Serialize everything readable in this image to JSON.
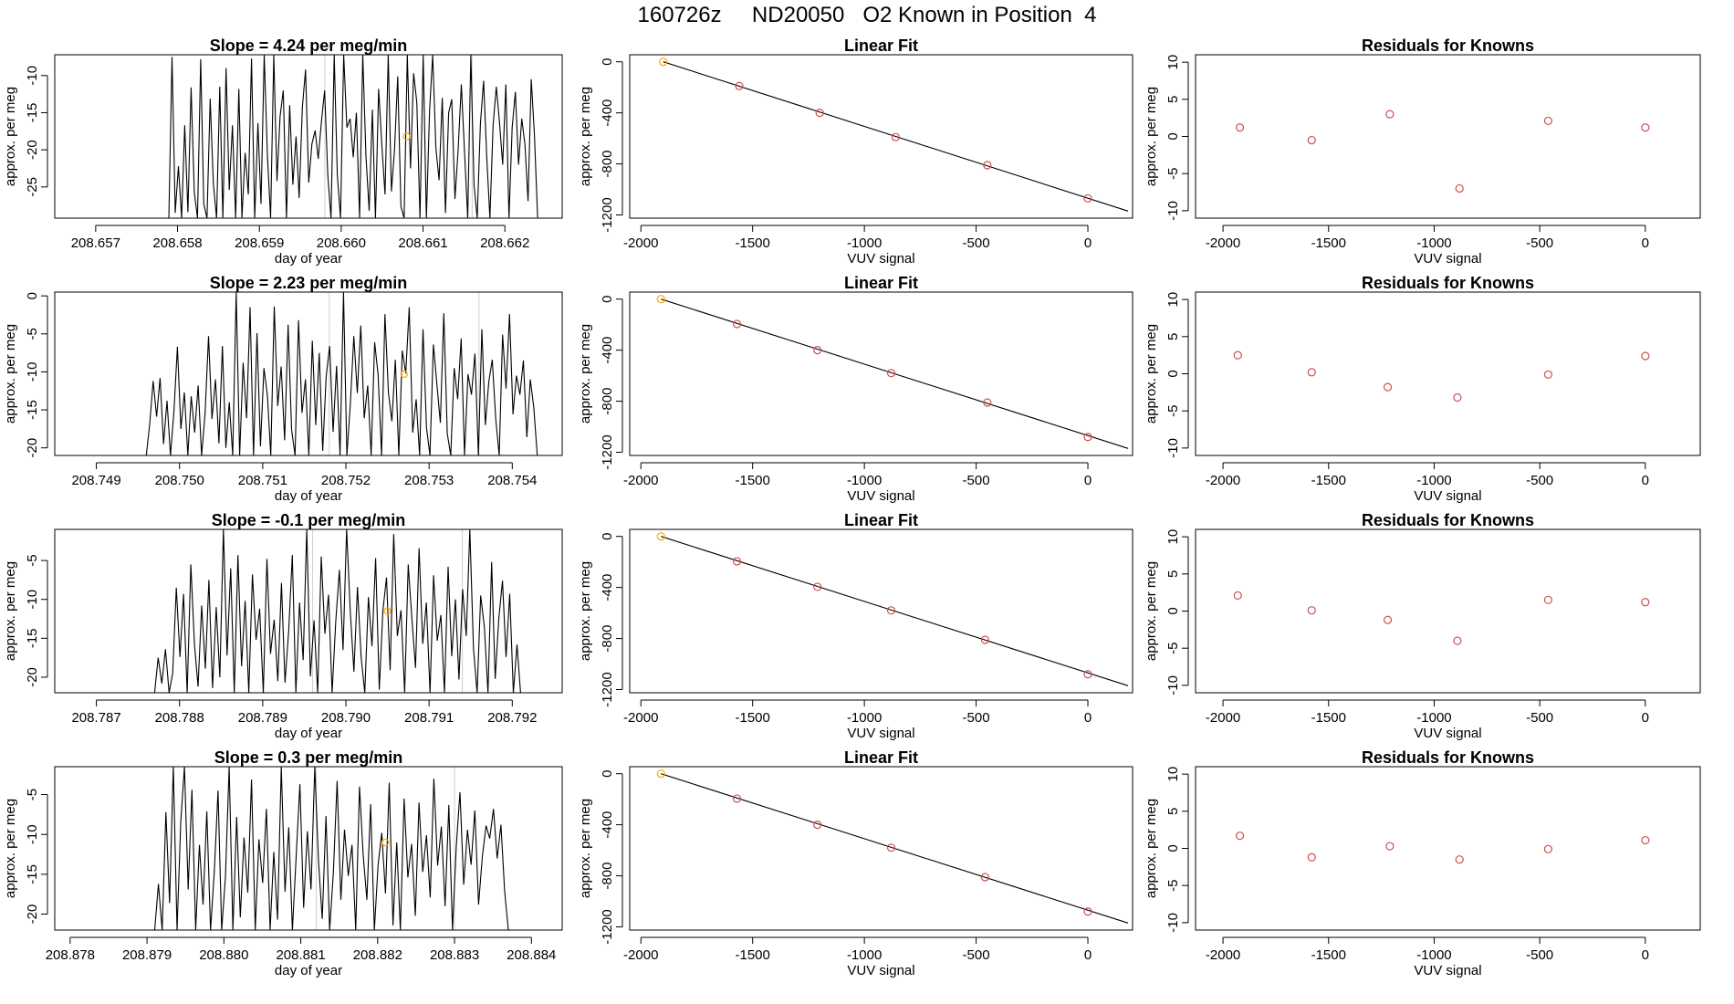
{
  "page_title": "160726z     ND20050   O2 Known in Position  4",
  "colors": {
    "trace": "#000000",
    "fit_line": "#000000",
    "point": "#cd4f4f",
    "marker": "#ffa500",
    "vline": "#cfcfcf",
    "frame": "#000000"
  },
  "chart_data": [
    {
      "type": "line",
      "row": 1,
      "title": "Slope =  4.24  per meg/min",
      "xlabel": "day of year",
      "ylabel": "approx. per meg",
      "xlim": [
        208.6565,
        208.6627
      ],
      "ylim": [
        -29.2,
        -7.2
      ],
      "xticks": [
        208.657,
        208.658,
        208.659,
        208.66,
        208.661,
        208.662
      ],
      "xtick_labels": [
        "208.657",
        "208.658",
        "208.659",
        "208.660",
        "208.661",
        "208.662"
      ],
      "yticks": [
        -25,
        -20,
        -15,
        -10
      ],
      "ytick_labels": [
        "-25",
        "-20",
        "-15",
        "-10"
      ],
      "vlines": [
        208.6598,
        208.6616
      ],
      "marker": {
        "x": 208.6608,
        "y": -18.2
      },
      "trace_range": [
        208.6577,
        208.6624
      ],
      "trace": [
        -29.2,
        -29.2,
        -29.2,
        -29.2,
        -29.2,
        -29.2,
        -7.5,
        -28.5,
        -22.2,
        -29.2,
        -16.7,
        -28.4,
        -11.6,
        -25.7,
        -29.2,
        -7.8,
        -27.3,
        -29.2,
        -13.1,
        -24.6,
        -29.2,
        -11.5,
        -29.2,
        -9.0,
        -25.4,
        -16.7,
        -29.2,
        -11.8,
        -29.2,
        -20.4,
        -26.0,
        -7.7,
        -29.2,
        -16.4,
        -27.3,
        -7.2,
        -20.7,
        -29.2,
        -7.2,
        -24.2,
        -15.5,
        -12.0,
        -29.2,
        -14.0,
        -24.7,
        -18.2,
        -26.5,
        -14.3,
        -9.2,
        -24.4,
        -19.2,
        -17.4,
        -21.2,
        -16.2,
        -12.0,
        -23.5,
        -29.2,
        -7.2,
        -23.4,
        -29.2,
        -7.2,
        -17.0,
        -15.8,
        -21.0,
        -15.0,
        -29.2,
        -7.2,
        -20.9,
        -28.2,
        -14.6,
        -29.2,
        -11.8,
        -19.4,
        -26.0,
        -7.2,
        -25.6,
        -20.0,
        -10.1,
        -27.6,
        -29.2,
        -7.2,
        -22.5,
        -9.7,
        -13.6,
        -29.2,
        -7.2,
        -29.2,
        -14.8,
        -7.2,
        -19.7,
        -24.1,
        -13.0,
        -28.5,
        -15.0,
        -13.2,
        -26.6,
        -20.0,
        -11.2,
        -20.3,
        -29.2,
        -7.2,
        -24.7,
        -29.2,
        -16.5,
        -10.7,
        -21.1,
        -29.2,
        -16.7,
        -11.5,
        -16.3,
        -22.0,
        -11.2,
        -29.2,
        -17.0,
        -12.2,
        -22.0,
        -15.8,
        -19.3,
        -26.9,
        -10.5,
        -18.0,
        -29.2
      ]
    },
    {
      "type": "scatter",
      "row": 1,
      "title": "Linear Fit",
      "xlabel": "VUV signal",
      "ylabel": "approx. per meg",
      "xlim": [
        -2050,
        200
      ],
      "ylim": [
        -1225,
        55
      ],
      "xticks": [
        -2000,
        -1500,
        -1000,
        -500,
        0
      ],
      "xtick_labels": [
        "-2000",
        "-1500",
        "-1000",
        "-500",
        "0"
      ],
      "yticks": [
        -1200,
        -800,
        -400,
        0
      ],
      "ytick_labels": [
        "-1200",
        "-800",
        "-400",
        "0"
      ],
      "points": [
        [
          -1900,
          0
        ],
        [
          -1560,
          -190
        ],
        [
          -1200,
          -400
        ],
        [
          -860,
          -590
        ],
        [
          -450,
          -810
        ],
        [
          0,
          -1070
        ]
      ],
      "highlight_index": 0,
      "fit": [
        [
          -1900,
          0
        ],
        [
          180,
          -1170
        ]
      ]
    },
    {
      "type": "scatter",
      "row": 1,
      "title": "Residuals for Knowns",
      "xlabel": "VUV signal",
      "ylabel": "approx. per meg",
      "xlim": [
        -2130,
        260
      ],
      "ylim": [
        -11,
        11
      ],
      "xticks": [
        -2000,
        -1500,
        -1000,
        -500,
        0
      ],
      "xtick_labels": [
        "-2000",
        "-1500",
        "-1000",
        "-500",
        "0"
      ],
      "yticks": [
        -10,
        -5,
        0,
        5,
        10
      ],
      "ytick_labels": [
        "-10",
        "-5",
        "0",
        "5",
        "10"
      ],
      "points": [
        [
          -1920,
          1.2
        ],
        [
          -1580,
          -0.5
        ],
        [
          -1210,
          3.0
        ],
        [
          -880,
          -7.0
        ],
        [
          -460,
          2.1
        ],
        [
          0,
          1.2
        ]
      ]
    },
    {
      "type": "line",
      "row": 2,
      "title": "Slope =  2.23  per meg/min",
      "xlabel": "day of year",
      "ylabel": "approx. per meg",
      "xlim": [
        208.7485,
        208.7546
      ],
      "ylim": [
        -21,
        0.5
      ],
      "xticks": [
        208.749,
        208.75,
        208.751,
        208.752,
        208.753,
        208.754
      ],
      "xtick_labels": [
        "208.749",
        "208.750",
        "208.751",
        "208.752",
        "208.753",
        "208.754"
      ],
      "yticks": [
        -20,
        -15,
        -10,
        -5,
        0
      ],
      "ytick_labels": [
        "-20",
        "-15",
        "-10",
        "-5",
        "0"
      ],
      "vlines": [
        208.7518,
        208.7536
      ],
      "marker": {
        "x": 208.7527,
        "y": -10.3
      },
      "trace_range": [
        208.7496,
        208.7543
      ],
      "trace": [
        -21.0,
        -16.8,
        -11.2,
        -15.9,
        -10.8,
        -19.5,
        -13.8,
        -21.0,
        -15.2,
        -6.7,
        -17.5,
        -12.7,
        -21.0,
        -13.2,
        -18.0,
        -11.8,
        -21.0,
        -15.5,
        -5.3,
        -16.2,
        -11.0,
        -19.4,
        -6.6,
        -20.0,
        -14.0,
        -21.0,
        0.5,
        -21.0,
        -8.8,
        -16.1,
        -1.5,
        -21.0,
        -4.9,
        -19.8,
        -9.5,
        -13.1,
        -21.0,
        -1.4,
        -14.5,
        -9.3,
        -19.0,
        -3.8,
        -17.6,
        -21.0,
        -3.2,
        -15.4,
        -11.0,
        -21.0,
        -5.9,
        -17.0,
        -7.5,
        -20.4,
        -10.6,
        -6.6,
        -17.9,
        -9.2,
        -21.0,
        0.5,
        -21.0,
        -14.2,
        -5.3,
        -12.8,
        -3.9,
        -16.1,
        -11.8,
        -21.0,
        -6.1,
        -10.4,
        -21.0,
        -2.4,
        -12.7,
        -16.5,
        -8.4,
        -21.0,
        -7.2,
        -10.2,
        -1.5,
        -18.0,
        -13.6,
        -21.0,
        -4.4,
        -17.3,
        -21.0,
        -6.4,
        -11.6,
        -16.7,
        -2.3,
        -18.1,
        -21.0,
        -9.5,
        -13.6,
        -5.6,
        -21.0,
        -10.3,
        -13.0,
        -7.6,
        -21.0,
        -4.4,
        -17.0,
        -11.3,
        -8.4,
        -16.2,
        -21.0,
        -5.1,
        -12.2,
        -2.4,
        -15.6,
        -10.5,
        -13.0,
        -8.5,
        -18.6,
        -11.0,
        -14.7,
        -21.0
      ]
    },
    {
      "type": "scatter",
      "row": 2,
      "title": "Linear Fit",
      "xlabel": "VUV signal",
      "ylabel": "approx. per meg",
      "xlim": [
        -2050,
        200
      ],
      "ylim": [
        -1225,
        55
      ],
      "xticks": [
        -2000,
        -1500,
        -1000,
        -500,
        0
      ],
      "xtick_labels": [
        "-2000",
        "-1500",
        "-1000",
        "-500",
        "0"
      ],
      "yticks": [
        -1200,
        -800,
        -400,
        0
      ],
      "ytick_labels": [
        "-1200",
        "-800",
        "-400",
        "0"
      ],
      "points": [
        [
          -1910,
          0
        ],
        [
          -1570,
          -195
        ],
        [
          -1210,
          -400
        ],
        [
          -880,
          -580
        ],
        [
          -450,
          -810
        ],
        [
          0,
          -1080
        ]
      ],
      "highlight_index": 0,
      "fit": [
        [
          -1910,
          0
        ],
        [
          180,
          -1170
        ]
      ]
    },
    {
      "type": "scatter",
      "row": 2,
      "title": "Residuals for Knowns",
      "xlabel": "VUV signal",
      "ylabel": "approx. per meg",
      "xlim": [
        -2130,
        260
      ],
      "ylim": [
        -11,
        11
      ],
      "xticks": [
        -2000,
        -1500,
        -1000,
        -500,
        0
      ],
      "xtick_labels": [
        "-2000",
        "-1500",
        "-1000",
        "-500",
        "0"
      ],
      "yticks": [
        -10,
        -5,
        0,
        5,
        10
      ],
      "ytick_labels": [
        "-10",
        "-5",
        "0",
        "5",
        "10"
      ],
      "points": [
        [
          -1930,
          2.5
        ],
        [
          -1580,
          0.2
        ],
        [
          -1220,
          -1.8
        ],
        [
          -890,
          -3.2
        ],
        [
          -460,
          -0.1
        ],
        [
          0,
          2.4
        ]
      ]
    },
    {
      "type": "line",
      "row": 3,
      "title": "Slope =  -0.1  per meg/min",
      "xlabel": "day of year",
      "ylabel": "approx. per meg",
      "xlim": [
        208.7865,
        208.7926
      ],
      "ylim": [
        -22,
        -1
      ],
      "xticks": [
        208.787,
        208.788,
        208.789,
        208.79,
        208.791,
        208.792
      ],
      "xtick_labels": [
        "208.787",
        "208.788",
        "208.789",
        "208.790",
        "208.791",
        "208.792"
      ],
      "yticks": [
        -20,
        -15,
        -10,
        -5
      ],
      "ytick_labels": [
        "-20",
        "-15",
        "-10",
        "-5"
      ],
      "vlines": [
        208.7896,
        208.7914
      ],
      "marker": {
        "x": 208.7905,
        "y": -11.5
      },
      "trace_range": [
        208.7877,
        208.7921
      ],
      "trace": [
        -22.0,
        -17.5,
        -20.8,
        -16.4,
        -22.0,
        -19.5,
        -8.5,
        -17.4,
        -9.3,
        -22.0,
        -5.5,
        -15.8,
        -21.2,
        -10.8,
        -18.9,
        -7.5,
        -21.4,
        -11.0,
        -20.0,
        -1.0,
        -17.2,
        -6.0,
        -22.0,
        -4.3,
        -18.6,
        -10.2,
        -22.0,
        -6.8,
        -15.2,
        -11.2,
        -22.0,
        -4.8,
        -17.0,
        -12.6,
        -20.5,
        -7.9,
        -20.7,
        -14.1,
        -4.3,
        -22.0,
        -10.4,
        -17.8,
        -1.0,
        -19.9,
        -12.7,
        -22.0,
        -4.5,
        -14.4,
        -9.4,
        -22.0,
        -12.8,
        -6.2,
        -16.5,
        -1.0,
        -11.5,
        -19.3,
        -8.4,
        -17.4,
        -22.0,
        -9.7,
        -16.0,
        -4.7,
        -21.6,
        -11.5,
        -7.2,
        -19.1,
        -1.6,
        -14.7,
        -11.4,
        -22.0,
        -5.5,
        -12.5,
        -18.8,
        -3.4,
        -15.7,
        -10.4,
        -22.0,
        -6.9,
        -15.3,
        -12.0,
        -22.0,
        -5.8,
        -17.3,
        -10.0,
        -20.3,
        -8.7,
        -14.7,
        -1.0,
        -16.3,
        -22.0,
        -9.5,
        -13.5,
        -22.0,
        -5.2,
        -20.2,
        -12.4,
        -7.6,
        -17.4,
        -9.3,
        -22.0,
        -15.8,
        -22.0
      ]
    },
    {
      "type": "scatter",
      "row": 3,
      "title": "Linear Fit",
      "xlabel": "VUV signal",
      "ylabel": "approx. per meg",
      "xlim": [
        -2050,
        200
      ],
      "ylim": [
        -1225,
        55
      ],
      "xticks": [
        -2000,
        -1500,
        -1000,
        -500,
        0
      ],
      "xtick_labels": [
        "-2000",
        "-1500",
        "-1000",
        "-500",
        "0"
      ],
      "yticks": [
        -1200,
        -800,
        -400,
        0
      ],
      "ytick_labels": [
        "-1200",
        "-800",
        "-400",
        "0"
      ],
      "points": [
        [
          -1910,
          0
        ],
        [
          -1570,
          -195
        ],
        [
          -1210,
          -395
        ],
        [
          -880,
          -580
        ],
        [
          -460,
          -810
        ],
        [
          0,
          -1080
        ]
      ],
      "highlight_index": 0,
      "fit": [
        [
          -1910,
          0
        ],
        [
          180,
          -1170
        ]
      ]
    },
    {
      "type": "scatter",
      "row": 3,
      "title": "Residuals for Knowns",
      "xlabel": "VUV signal",
      "ylabel": "approx. per meg",
      "xlim": [
        -2130,
        260
      ],
      "ylim": [
        -11,
        11
      ],
      "xticks": [
        -2000,
        -1500,
        -1000,
        -500,
        0
      ],
      "xtick_labels": [
        "-2000",
        "-1500",
        "-1000",
        "-500",
        "0"
      ],
      "yticks": [
        -10,
        -5,
        0,
        5,
        10
      ],
      "ytick_labels": [
        "-10",
        "-5",
        "0",
        "5",
        "10"
      ],
      "points": [
        [
          -1930,
          2.1
        ],
        [
          -1580,
          0.1
        ],
        [
          -1220,
          -1.2
        ],
        [
          -890,
          -4.0
        ],
        [
          -460,
          1.5
        ],
        [
          0,
          1.2
        ]
      ]
    },
    {
      "type": "line",
      "row": 4,
      "title": "Slope =  0.3  per meg/min",
      "xlabel": "day of year",
      "ylabel": "approx. per meg",
      "xlim": [
        208.8778,
        208.8844
      ],
      "ylim": [
        -22,
        -1.5
      ],
      "xticks": [
        208.878,
        208.879,
        208.88,
        208.881,
        208.882,
        208.883,
        208.884
      ],
      "xtick_labels": [
        "208.878",
        "208.879",
        "208.880",
        "208.881",
        "208.882",
        "208.883",
        "208.884"
      ],
      "yticks": [
        -20,
        -15,
        -10,
        -5
      ],
      "ytick_labels": [
        "-20",
        "-15",
        "-10",
        "-5"
      ],
      "vlines": [
        208.8812,
        208.883
      ],
      "marker": {
        "x": 208.8821,
        "y": -11.0
      },
      "trace_range": [
        208.8791,
        208.8837
      ],
      "trace": [
        -22.0,
        -16.2,
        -22.0,
        -7.2,
        -18.6,
        -1.5,
        -22.0,
        -8.3,
        -1.5,
        -16.9,
        -4.4,
        -22.0,
        -11.3,
        -18.8,
        -7.1,
        -22.0,
        -14.7,
        -4.5,
        -22.0,
        -15.4,
        -1.5,
        -22.0,
        -7.8,
        -20.4,
        -10.4,
        -17.3,
        -3.1,
        -22.0,
        -10.6,
        -16.1,
        -6.8,
        -22.0,
        -12.2,
        -20.7,
        -1.5,
        -17.2,
        -9.1,
        -22.0,
        -12.8,
        -3.7,
        -19.2,
        -9.6,
        -16.9,
        -1.5,
        -13.4,
        -20.6,
        -7.7,
        -22.0,
        -14.7,
        -3.3,
        -18.2,
        -9.4,
        -15.2,
        -11.3,
        -22.0,
        -4.0,
        -12.5,
        -18.2,
        -6.2,
        -22.0,
        -13.8,
        -9.8,
        -17.4,
        -3.5,
        -21.4,
        -11.0,
        -22.0,
        -5.5,
        -15.4,
        -11.2,
        -20.2,
        -6.0,
        -14.7,
        -10.1,
        -17.9,
        -3.0,
        -13.9,
        -9.0,
        -19.0,
        -6.3,
        -22.0,
        -11.6,
        -4.7,
        -16.3,
        -9.4,
        -13.8,
        -7.0,
        -18.8,
        -12.8,
        -8.9,
        -10.5,
        -6.8,
        -13.0,
        -8.8,
        -17.2,
        -22.0
      ]
    },
    {
      "type": "scatter",
      "row": 4,
      "title": "Linear Fit",
      "xlabel": "VUV signal",
      "ylabel": "approx. per meg",
      "xlim": [
        -2050,
        200
      ],
      "ylim": [
        -1225,
        55
      ],
      "xticks": [
        -2000,
        -1500,
        -1000,
        -500,
        0
      ],
      "xtick_labels": [
        "-2000",
        "-1500",
        "-1000",
        "-500",
        "0"
      ],
      "yticks": [
        -1200,
        -800,
        -400,
        0
      ],
      "ytick_labels": [
        "-1200",
        "-800",
        "-400",
        "0"
      ],
      "points": [
        [
          -1910,
          0
        ],
        [
          -1570,
          -195
        ],
        [
          -1210,
          -400
        ],
        [
          -880,
          -580
        ],
        [
          -460,
          -810
        ],
        [
          0,
          -1080
        ]
      ],
      "highlight_index": 0,
      "fit": [
        [
          -1910,
          0
        ],
        [
          180,
          -1170
        ]
      ]
    },
    {
      "type": "scatter",
      "row": 4,
      "title": "Residuals for Knowns",
      "xlabel": "VUV signal",
      "ylabel": "approx. per meg",
      "xlim": [
        -2130,
        260
      ],
      "ylim": [
        -11,
        11
      ],
      "xticks": [
        -2000,
        -1500,
        -1000,
        -500,
        0
      ],
      "xtick_labels": [
        "-2000",
        "-1500",
        "-1000",
        "-500",
        "0"
      ],
      "yticks": [
        -10,
        -5,
        0,
        5,
        10
      ],
      "ytick_labels": [
        "-10",
        "-5",
        "0",
        "5",
        "10"
      ],
      "points": [
        [
          -1920,
          1.7
        ],
        [
          -1580,
          -1.2
        ],
        [
          -1210,
          0.3
        ],
        [
          -880,
          -1.5
        ],
        [
          -460,
          -0.1
        ],
        [
          0,
          1.1
        ]
      ]
    }
  ]
}
